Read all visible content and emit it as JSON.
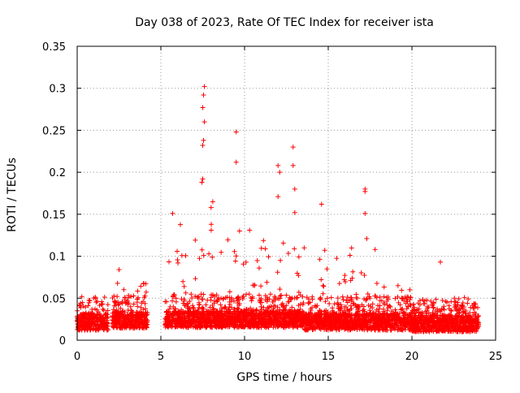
{
  "chart_data": {
    "type": "scatter",
    "title": "Day 038 of 2023, Rate Of TEC Index for receiver ista",
    "xlabel": "GPS time / hours",
    "ylabel": "ROTI / TECUs",
    "xlim": [
      0,
      25
    ],
    "ylim": [
      0,
      0.35
    ],
    "x_ticks": [
      "0",
      "5",
      "10",
      "15",
      "20",
      "25"
    ],
    "y_ticks": [
      "0",
      "0.05",
      "0.1",
      "0.15",
      "0.2",
      "0.25",
      "0.3",
      "0.35"
    ],
    "x_tick_values": [
      0,
      5,
      10,
      15,
      20,
      25
    ],
    "y_tick_values": [
      0,
      0.05,
      0.1,
      0.15,
      0.2,
      0.25,
      0.3,
      0.35
    ],
    "grid": true,
    "marker": "+",
    "color": "#ff0000",
    "coverage_gaps_hours": [
      [
        1.85,
        2.1
      ],
      [
        4.2,
        5.25
      ]
    ],
    "notable_points": [
      {
        "x": 7.6,
        "y": 0.302
      },
      {
        "x": 7.55,
        "y": 0.292
      },
      {
        "x": 7.5,
        "y": 0.277
      },
      {
        "x": 7.6,
        "y": 0.26
      },
      {
        "x": 7.55,
        "y": 0.238
      },
      {
        "x": 7.5,
        "y": 0.232
      },
      {
        "x": 9.5,
        "y": 0.248
      },
      {
        "x": 9.5,
        "y": 0.212
      },
      {
        "x": 12.9,
        "y": 0.23
      },
      {
        "x": 12.9,
        "y": 0.208
      },
      {
        "x": 12.0,
        "y": 0.208
      },
      {
        "x": 12.1,
        "y": 0.2
      },
      {
        "x": 13.0,
        "y": 0.18
      },
      {
        "x": 12.0,
        "y": 0.171
      },
      {
        "x": 17.2,
        "y": 0.18
      },
      {
        "x": 17.2,
        "y": 0.177
      },
      {
        "x": 14.6,
        "y": 0.162
      },
      {
        "x": 7.5,
        "y": 0.192
      },
      {
        "x": 7.45,
        "y": 0.188
      },
      {
        "x": 8.1,
        "y": 0.165
      },
      {
        "x": 8.0,
        "y": 0.158
      },
      {
        "x": 5.7,
        "y": 0.151
      },
      {
        "x": 17.2,
        "y": 0.151
      },
      {
        "x": 17.3,
        "y": 0.121
      },
      {
        "x": 17.8,
        "y": 0.108
      },
      {
        "x": 9.7,
        "y": 0.13
      },
      {
        "x": 10.3,
        "y": 0.131
      },
      {
        "x": 13.0,
        "y": 0.152
      },
      {
        "x": 2.5,
        "y": 0.084
      },
      {
        "x": 21.7,
        "y": 0.093
      },
      {
        "x": 16.3,
        "y": 0.101
      }
    ],
    "segments": [
      {
        "x0": 0.0,
        "x1": 1.85,
        "base": 0.012,
        "peak": 0.046
      },
      {
        "x0": 2.1,
        "x1": 4.2,
        "base": 0.014,
        "peak": 0.07
      },
      {
        "x0": 5.25,
        "x1": 8.5,
        "base": 0.015,
        "peak": 0.14
      },
      {
        "x0": 8.5,
        "x1": 13.5,
        "base": 0.015,
        "peak": 0.12
      },
      {
        "x0": 13.5,
        "x1": 17.5,
        "base": 0.012,
        "peak": 0.11
      },
      {
        "x0": 17.5,
        "x1": 20.0,
        "base": 0.012,
        "peak": 0.07
      },
      {
        "x0": 20.0,
        "x1": 24.0,
        "base": 0.01,
        "peak": 0.055
      }
    ]
  }
}
